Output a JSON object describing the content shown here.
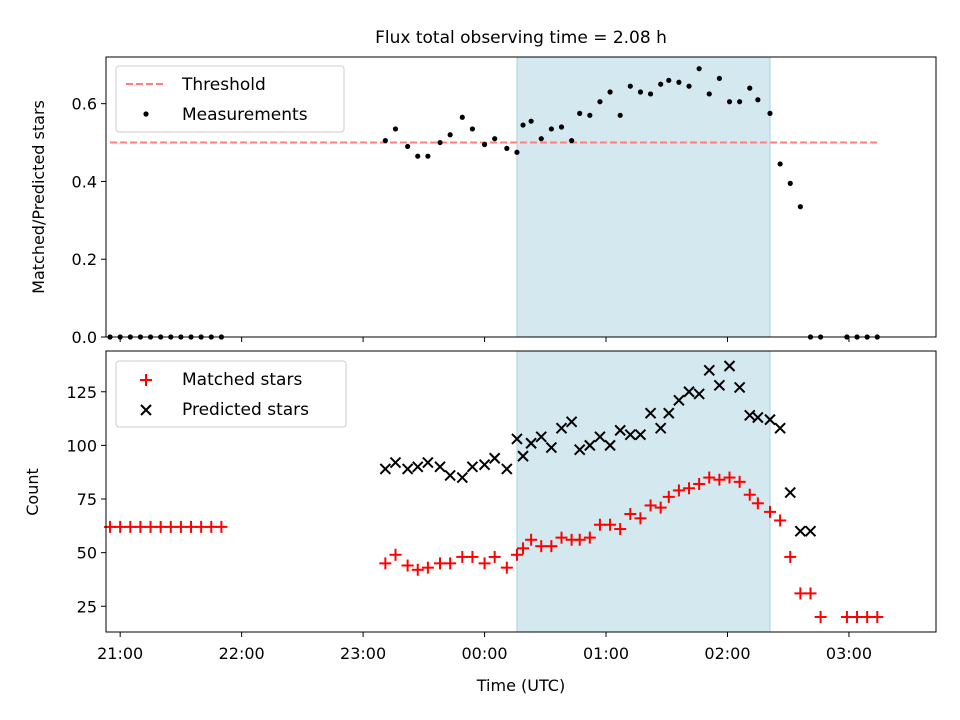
{
  "chart_data": [
    {
      "type": "scatter",
      "title": "Flux total observing time = 2.08 h",
      "xlabel": "",
      "ylabel": "Matched/Predicted stars",
      "x_ticks": [
        "21:00",
        "22:00",
        "23:00",
        "00:00",
        "01:00",
        "02:00",
        "03:00"
      ],
      "x_tick_labels_visible": false,
      "xlim": [
        "20:53",
        "03:43"
      ],
      "ylim": [
        0,
        0.72
      ],
      "y_ticks": [
        0.0,
        0.2,
        0.4,
        0.6
      ],
      "y_tick_labels": [
        "0.0",
        "0.2",
        "0.4",
        "0.6"
      ],
      "highlight_span": {
        "start": "00:16",
        "end": "02:21",
        "color": "#d4e9ef"
      },
      "legend": {
        "position": "upper-left",
        "entries": [
          "Threshold",
          "Measurements"
        ]
      },
      "series": [
        {
          "name": "Threshold",
          "kind": "dashed-line",
          "color": "#ff7f7f",
          "x": [
            "20:55",
            "03:15"
          ],
          "y": [
            0.5,
            0.5
          ]
        },
        {
          "name": "Measurements",
          "kind": "dot",
          "color": "#000000",
          "x": [
            "20:55",
            "21:00",
            "21:05",
            "21:10",
            "21:15",
            "21:20",
            "21:25",
            "21:30",
            "21:35",
            "21:40",
            "21:45",
            "21:50",
            "23:11",
            "23:16",
            "23:22",
            "23:27",
            "23:32",
            "23:38",
            "23:43",
            "23:49",
            "23:54",
            "24:00",
            "24:05",
            "24:11",
            "24:16",
            "24:19",
            "24:23",
            "24:28",
            "24:33",
            "24:38",
            "24:43",
            "24:47",
            "24:52",
            "24:57",
            "25:02",
            "25:07",
            "25:12",
            "25:17",
            "25:22",
            "25:27",
            "25:31",
            "25:36",
            "25:41",
            "25:46",
            "25:51",
            "25:56",
            "26:01",
            "26:06",
            "26:11",
            "26:15",
            "26:21",
            "26:26",
            "26:31",
            "26:36",
            "26:41",
            "26:46",
            "26:59",
            "27:04",
            "27:09",
            "27:14"
          ],
          "y": [
            0,
            0,
            0,
            0,
            0,
            0,
            0,
            0,
            0,
            0,
            0,
            0,
            0.505,
            0.535,
            0.49,
            0.465,
            0.465,
            0.5,
            0.52,
            0.565,
            0.535,
            0.495,
            0.51,
            0.485,
            0.475,
            0.545,
            0.555,
            0.51,
            0.535,
            0.54,
            0.505,
            0.575,
            0.57,
            0.605,
            0.63,
            0.57,
            0.645,
            0.63,
            0.625,
            0.65,
            0.66,
            0.655,
            0.645,
            0.69,
            0.625,
            0.665,
            0.605,
            0.605,
            0.64,
            0.61,
            0.575,
            0.445,
            0.395,
            0.335,
            0,
            0,
            0,
            0,
            0,
            0
          ]
        }
      ]
    },
    {
      "type": "scatter",
      "title": "",
      "xlabel": "Time (UTC)",
      "ylabel": "Count",
      "x_ticks": [
        "21:00",
        "22:00",
        "23:00",
        "00:00",
        "01:00",
        "02:00",
        "03:00"
      ],
      "x_tick_labels": [
        "21:00",
        "22:00",
        "23:00",
        "00:00",
        "01:00",
        "02:00",
        "03:00"
      ],
      "xlim": [
        "20:53",
        "03:43"
      ],
      "ylim": [
        13,
        144
      ],
      "y_ticks": [
        25,
        50,
        75,
        100,
        125
      ],
      "y_tick_labels": [
        "25",
        "50",
        "75",
        "100",
        "125"
      ],
      "highlight_span": {
        "start": "00:16",
        "end": "02:21",
        "color": "#d4e9ef"
      },
      "legend": {
        "position": "upper-left",
        "entries": [
          "Matched stars",
          "Predicted stars"
        ]
      },
      "series": [
        {
          "name": "Matched stars",
          "kind": "plus",
          "color": "#ff0000",
          "x": [
            "20:55",
            "21:00",
            "21:05",
            "21:10",
            "21:15",
            "21:20",
            "21:25",
            "21:30",
            "21:35",
            "21:40",
            "21:45",
            "21:50",
            "23:11",
            "23:16",
            "23:22",
            "23:27",
            "23:32",
            "23:38",
            "23:43",
            "23:49",
            "23:54",
            "24:00",
            "24:05",
            "24:11",
            "24:16",
            "24:19",
            "24:23",
            "24:28",
            "24:33",
            "24:38",
            "24:43",
            "24:47",
            "24:52",
            "24:57",
            "25:02",
            "25:07",
            "25:12",
            "25:17",
            "25:22",
            "25:27",
            "25:31",
            "25:36",
            "25:41",
            "25:46",
            "25:51",
            "25:56",
            "26:01",
            "26:06",
            "26:11",
            "26:15",
            "26:21",
            "26:26",
            "26:31",
            "26:36",
            "26:41",
            "26:46",
            "26:59",
            "27:04",
            "27:09",
            "27:14"
          ],
          "y": [
            62,
            62,
            62,
            62,
            62,
            62,
            62,
            62,
            62,
            62,
            62,
            62,
            45,
            49,
            44,
            42,
            43,
            45,
            45,
            48,
            48,
            45,
            48,
            43,
            49,
            52,
            56,
            53,
            53,
            57,
            56,
            56,
            57,
            63,
            63,
            61,
            68,
            66,
            72,
            71,
            76,
            79,
            80,
            82,
            85,
            84,
            85,
            83,
            77,
            73,
            69,
            65,
            48,
            31,
            31,
            20,
            20,
            20,
            20,
            20
          ]
        },
        {
          "name": "Predicted stars",
          "kind": "x",
          "color": "#000000",
          "x": [
            "23:11",
            "23:16",
            "23:22",
            "23:27",
            "23:32",
            "23:38",
            "23:43",
            "23:49",
            "23:54",
            "24:00",
            "24:05",
            "24:11",
            "24:16",
            "24:19",
            "24:23",
            "24:28",
            "24:33",
            "24:38",
            "24:43",
            "24:47",
            "24:52",
            "24:57",
            "25:02",
            "25:07",
            "25:12",
            "25:17",
            "25:22",
            "25:27",
            "25:31",
            "25:36",
            "25:41",
            "25:46",
            "25:51",
            "25:56",
            "26:01",
            "26:06",
            "26:11",
            "26:15",
            "26:21",
            "26:26",
            "26:31",
            "26:36",
            "26:41"
          ],
          "y": [
            89,
            92,
            89,
            90,
            92,
            90,
            86,
            85,
            90,
            91,
            94,
            89,
            103,
            95,
            101,
            104,
            99,
            108,
            111,
            98,
            100,
            104,
            100,
            107,
            105,
            105,
            115,
            108,
            115,
            121,
            125,
            124,
            135,
            128,
            137,
            127,
            114,
            113,
            112,
            108,
            78,
            60,
            60
          ]
        }
      ]
    }
  ]
}
